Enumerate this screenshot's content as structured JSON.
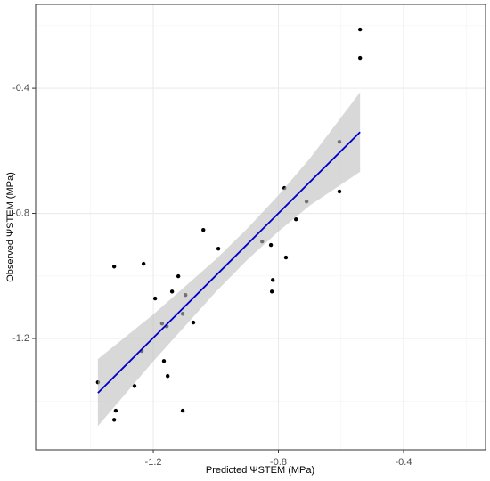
{
  "chart_data": {
    "type": "scatter",
    "xlabel": "Predicted ΨSTEM (MPa)",
    "ylabel": "Observed ΨSTEM (MPa)",
    "xlim": [
      -1.576,
      -0.138
    ],
    "ylim": [
      -1.556,
      -0.132
    ],
    "xticks": [
      -1.2,
      -0.8,
      -0.4
    ],
    "yticks": [
      -1.2,
      -0.8,
      -0.4
    ],
    "xminor": [
      -1.4,
      -1.0,
      -0.6,
      -0.2
    ],
    "yminor": [
      -1.4,
      -1.0,
      -0.6,
      -0.2
    ],
    "grid": true,
    "color": "#000000",
    "x": [
      -1.377,
      -1.32,
      -1.325,
      -1.325,
      -1.26,
      -1.231,
      -1.237,
      -1.194,
      -1.172,
      -1.166,
      -1.157,
      -1.154,
      -1.14,
      -1.12,
      -1.106,
      -1.106,
      -1.097,
      -1.072,
      -1.04,
      -0.992,
      -0.852,
      -0.824,
      -0.818,
      -0.821,
      -0.781,
      -0.776,
      -0.744,
      -0.71,
      -0.605,
      -0.605,
      -0.539,
      -0.539
    ],
    "values": [
      -1.34,
      -1.431,
      -1.46,
      -0.97,
      -1.352,
      -0.961,
      -1.24,
      -1.072,
      -1.152,
      -1.272,
      -1.161,
      -1.32,
      -1.05,
      -1.001,
      -1.431,
      -1.121,
      -1.061,
      -1.149,
      -0.853,
      -0.913,
      -0.89,
      -0.901,
      -1.013,
      -1.05,
      -0.719,
      -0.941,
      -0.819,
      -0.762,
      -0.571,
      -0.73,
      -0.303,
      -0.212
    ],
    "fit": {
      "color": "#0000cc",
      "x": [
        -1.377,
        -0.539
      ],
      "y": [
        -1.374,
        -0.54
      ]
    },
    "band": {
      "color": "#bebebe",
      "x": [
        -1.377,
        -1.2,
        -1.0,
        -0.9,
        -0.8,
        -0.7,
        -0.539
      ],
      "lower": [
        -1.48,
        -1.273,
        -1.051,
        -0.949,
        -0.858,
        -0.775,
        -0.667
      ],
      "upper": [
        -1.266,
        -1.123,
        -0.947,
        -0.849,
        -0.742,
        -0.625,
        -0.413
      ]
    }
  }
}
